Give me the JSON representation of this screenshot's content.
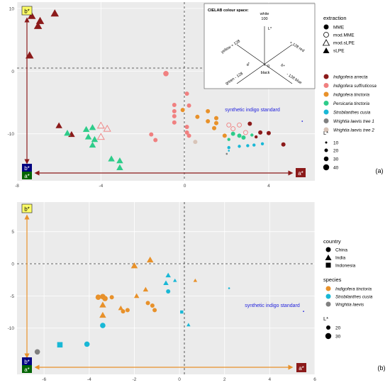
{
  "colors": {
    "panel_bg": "#ebebeb",
    "grid": "#ffffff",
    "arrow_red": "#8b1a1a",
    "arrow_orange": "#e8912a",
    "box_yellow": "#ffff66",
    "box_blue": "#000080",
    "box_green": "#006400",
    "box_red": "#8b1a1a",
    "synthetic_text": "#2222dd"
  },
  "chart_data": [
    {
      "id": "a",
      "type": "scatter",
      "panel_label": "(a)",
      "xlim": [
        -8,
        6.2
      ],
      "ylim": [
        -17.5,
        11
      ],
      "xticks": [
        -8,
        -4,
        0,
        4
      ],
      "yticks": [
        10,
        0,
        -10
      ],
      "box_labels": {
        "b_pos": "b*",
        "b_neg": "b*",
        "a_neg": "a*",
        "a_pos": "a*"
      },
      "synthetic_label": "synthetic indigo standard",
      "synthetic_point": {
        "x": 5.6,
        "y": -8.0
      },
      "inset": {
        "title": "CIELAB colour space:",
        "white": "white",
        "hundred": "100",
        "lstar": "L*",
        "black": "black",
        "zero": "0",
        "yellow": "yellow  + 128",
        "red": "+ 128  red",
        "green": "green  - 128",
        "blue": "- 128  blue",
        "a": "a*",
        "b": "b*"
      },
      "legend": {
        "extraction_title": "extraction",
        "extraction": [
          "MME",
          "mod.MME",
          "mod.sLPE",
          "sLPE"
        ],
        "species": [
          {
            "name": "Indigofera arrecta",
            "color": "#8b1a1a"
          },
          {
            "name": "Indigofera suffruticosa",
            "color": "#f08080"
          },
          {
            "name": "Indigofera tinctoria",
            "color": "#e8912a"
          },
          {
            "name": "Persicaria tinctoria",
            "color": "#2ecc8a"
          },
          {
            "name": "Strobilanthes cusia",
            "color": "#19b8d6"
          },
          {
            "name": "Wrightia laevis tree 1",
            "color": "#808080"
          },
          {
            "name": "Wrightia laevis tree 2",
            "color": "#d8c4b8"
          }
        ],
        "size_title": "L*",
        "sizes": [
          "10",
          "20",
          "30",
          "40"
        ]
      },
      "points": [
        {
          "x": -7.3,
          "y": 8.8,
          "shape": "tri",
          "species": 0,
          "size": 4
        },
        {
          "x": -6.9,
          "y": 8.0,
          "shape": "tri",
          "species": 0,
          "size": 4
        },
        {
          "x": -7.0,
          "y": 7.2,
          "shape": "tri",
          "species": 0,
          "size": 4
        },
        {
          "x": -6.2,
          "y": 9.2,
          "shape": "tri",
          "species": 0,
          "size": 4
        },
        {
          "x": -7.4,
          "y": 2.5,
          "shape": "tri",
          "species": 0,
          "size": 4
        },
        {
          "x": -6.0,
          "y": -8.7,
          "shape": "tri",
          "species": 0,
          "size": 3
        },
        {
          "x": -5.4,
          "y": -10.1,
          "shape": "tri",
          "species": 0,
          "size": 3
        },
        {
          "x": -5.6,
          "y": -9.9,
          "shape": "tri",
          "species": 3,
          "size": 3
        },
        {
          "x": -4.7,
          "y": -9.3,
          "shape": "tri",
          "species": 3,
          "size": 3
        },
        {
          "x": -4.4,
          "y": -9.0,
          "shape": "tri",
          "species": 3,
          "size": 3
        },
        {
          "x": -4.6,
          "y": -10.5,
          "shape": "tri",
          "species": 3,
          "size": 3
        },
        {
          "x": -4.3,
          "y": -10.9,
          "shape": "tri",
          "species": 3,
          "size": 3
        },
        {
          "x": -4.4,
          "y": -11.8,
          "shape": "tri",
          "species": 3,
          "size": 3
        },
        {
          "x": -4.0,
          "y": -8.7,
          "shape": "otri",
          "species": 1,
          "size": 3
        },
        {
          "x": -3.7,
          "y": -9.2,
          "shape": "otri",
          "species": 1,
          "size": 3
        },
        {
          "x": -4.0,
          "y": -10.5,
          "shape": "otri",
          "species": 1,
          "size": 3
        },
        {
          "x": -3.5,
          "y": -14.0,
          "shape": "tri",
          "species": 3,
          "size": 3
        },
        {
          "x": -3.1,
          "y": -14.3,
          "shape": "tri",
          "species": 3,
          "size": 3
        },
        {
          "x": -3.1,
          "y": -15.4,
          "shape": "tri",
          "species": 3,
          "size": 3
        },
        {
          "x": -0.9,
          "y": -0.4,
          "shape": "circ",
          "species": 1,
          "size": 3
        },
        {
          "x": -1.6,
          "y": -10.1,
          "shape": "circ",
          "species": 1,
          "size": 2
        },
        {
          "x": -1.4,
          "y": -11.0,
          "shape": "circ",
          "species": 1,
          "size": 2
        },
        {
          "x": -0.5,
          "y": -5.4,
          "shape": "circ",
          "species": 1,
          "size": 2
        },
        {
          "x": -0.5,
          "y": -6.4,
          "shape": "circ",
          "species": 1,
          "size": 2
        },
        {
          "x": -0.5,
          "y": -7.2,
          "shape": "circ",
          "species": 1,
          "size": 2
        },
        {
          "x": -0.5,
          "y": -8.2,
          "shape": "circ",
          "species": 1,
          "size": 2
        },
        {
          "x": 0.1,
          "y": -3.6,
          "shape": "circ",
          "species": 1,
          "size": 2
        },
        {
          "x": 0.2,
          "y": -5.5,
          "shape": "circ",
          "species": 1,
          "size": 2
        },
        {
          "x": 0.1,
          "y": -8.9,
          "shape": "circ",
          "species": 1,
          "size": 2
        },
        {
          "x": 0.1,
          "y": -9.8,
          "shape": "circ",
          "species": 1,
          "size": 2
        },
        {
          "x": 0.2,
          "y": -10.3,
          "shape": "circ",
          "species": 1,
          "size": 2
        },
        {
          "x": -0.1,
          "y": -6.2,
          "shape": "circ",
          "species": 2,
          "size": 2
        },
        {
          "x": 0.6,
          "y": -7.3,
          "shape": "circ",
          "species": 2,
          "size": 2
        },
        {
          "x": 1.1,
          "y": -6.4,
          "shape": "circ",
          "species": 2,
          "size": 2
        },
        {
          "x": 1.1,
          "y": -8.0,
          "shape": "circ",
          "species": 2,
          "size": 2
        },
        {
          "x": 1.5,
          "y": -7.5,
          "shape": "circ",
          "species": 2,
          "size": 2
        },
        {
          "x": 1.5,
          "y": -8.3,
          "shape": "circ",
          "species": 2,
          "size": 2
        },
        {
          "x": 1.9,
          "y": -10.3,
          "shape": "circ",
          "species": 2,
          "size": 2
        },
        {
          "x": 1.4,
          "y": -9.1,
          "shape": "circ",
          "species": 2,
          "size": 2
        },
        {
          "x": 0.5,
          "y": -11.3,
          "shape": "circ",
          "species": 6,
          "size": 2
        },
        {
          "x": 2.1,
          "y": -8.6,
          "shape": "ocirc",
          "species": 1,
          "size": 2
        },
        {
          "x": 2.3,
          "y": -9.2,
          "shape": "ocirc",
          "species": 1,
          "size": 2
        },
        {
          "x": 2.6,
          "y": -8.6,
          "shape": "ocirc",
          "species": 1,
          "size": 2
        },
        {
          "x": 2.9,
          "y": -9.8,
          "shape": "ocirc",
          "species": 1,
          "size": 2
        },
        {
          "x": 3.1,
          "y": -8.4,
          "shape": "circ",
          "species": 0,
          "size": 2
        },
        {
          "x": 3.6,
          "y": -9.8,
          "shape": "circ",
          "species": 0,
          "size": 2
        },
        {
          "x": 4.0,
          "y": -9.9,
          "shape": "circ",
          "species": 0,
          "size": 2
        },
        {
          "x": 4.7,
          "y": -11.7,
          "shape": "circ",
          "species": 0,
          "size": 2
        },
        {
          "x": 2.3,
          "y": -10.0,
          "shape": "circ",
          "species": 3,
          "size": 2
        },
        {
          "x": 2.6,
          "y": -10.3,
          "shape": "circ",
          "species": 3,
          "size": 2
        },
        {
          "x": 2.8,
          "y": -10.6,
          "shape": "circ",
          "species": 3,
          "size": 2
        },
        {
          "x": 3.2,
          "y": -10.2,
          "shape": "circ",
          "species": 3,
          "size": 1
        },
        {
          "x": 3.4,
          "y": -10.5,
          "shape": "circ",
          "species": 0,
          "size": 1
        },
        {
          "x": 2.1,
          "y": -10.9,
          "shape": "circ",
          "species": 3,
          "size": 1
        },
        {
          "x": 2.1,
          "y": -12.2,
          "shape": "circ",
          "species": 4,
          "size": 1
        },
        {
          "x": 2.6,
          "y": -12.0,
          "shape": "circ",
          "species": 4,
          "size": 1
        },
        {
          "x": 3.0,
          "y": -11.9,
          "shape": "circ",
          "species": 4,
          "size": 1
        },
        {
          "x": 3.3,
          "y": -11.8,
          "shape": "circ",
          "species": 4,
          "size": 1
        },
        {
          "x": 3.7,
          "y": -11.6,
          "shape": "circ",
          "species": 4,
          "size": 1
        },
        {
          "x": 2.1,
          "y": -12.7,
          "shape": "circ",
          "species": 4,
          "size": 0
        },
        {
          "x": 2.0,
          "y": -13.2,
          "shape": "circ",
          "species": 5,
          "size": 0
        }
      ]
    },
    {
      "id": "b",
      "type": "scatter",
      "panel_label": "(b)",
      "xlim": [
        -7.2,
        6
      ],
      "ylim": [
        -17.2,
        9.6
      ],
      "xticks": [
        -6,
        -4,
        -2,
        0,
        2,
        4,
        6
      ],
      "yticks": [
        5,
        0,
        -5,
        -10
      ],
      "box_labels": {
        "b_pos": "b*",
        "b_neg": "b*",
        "a_neg": "a*",
        "a_pos": "a*"
      },
      "synthetic_label": "synthetic indigo standard",
      "synthetic_point": {
        "x": 5.5,
        "y": -7.4
      },
      "legend": {
        "country_title": "country",
        "country": [
          "China",
          "India",
          "Indonesia"
        ],
        "species_title": "species",
        "species": [
          {
            "name": "Indigofera tinctoria",
            "color": "#e8912a"
          },
          {
            "name": "Strobilanthes cusia",
            "color": "#19b8d6"
          },
          {
            "name": "Wrightia laevis",
            "color": "#808080"
          }
        ],
        "size_title": "L*",
        "sizes": [
          "20",
          "30"
        ]
      },
      "points": [
        {
          "x": -6.3,
          "y": -13.7,
          "shape": "circ",
          "species": 2,
          "size": 3
        },
        {
          "x": -5.3,
          "y": -12.6,
          "shape": "sq",
          "species": 1,
          "size": 3
        },
        {
          "x": -4.1,
          "y": -12.5,
          "shape": "circ",
          "species": 1,
          "size": 3
        },
        {
          "x": -3.4,
          "y": -9.6,
          "shape": "circ",
          "species": 1,
          "size": 3
        },
        {
          "x": -3.4,
          "y": -8.0,
          "shape": "tri",
          "species": 0,
          "size": 3
        },
        {
          "x": -3.4,
          "y": -6.4,
          "shape": "tri",
          "species": 0,
          "size": 3
        },
        {
          "x": -3.6,
          "y": -5.2,
          "shape": "circ",
          "species": 0,
          "size": 3
        },
        {
          "x": -3.4,
          "y": -5.1,
          "shape": "circ",
          "species": 0,
          "size": 3
        },
        {
          "x": -3.3,
          "y": -5.4,
          "shape": "circ",
          "species": 0,
          "size": 3
        },
        {
          "x": -3.0,
          "y": -5.2,
          "shape": "circ",
          "species": 0,
          "size": 2
        },
        {
          "x": -2.6,
          "y": -6.9,
          "shape": "tri",
          "species": 0,
          "size": 2
        },
        {
          "x": -2.3,
          "y": -7.2,
          "shape": "circ",
          "species": 0,
          "size": 2
        },
        {
          "x": -2.5,
          "y": -7.4,
          "shape": "circ",
          "species": 0,
          "size": 2
        },
        {
          "x": -2.0,
          "y": -0.3,
          "shape": "tri",
          "species": 0,
          "size": 3
        },
        {
          "x": -1.5,
          "y": -4.0,
          "shape": "tri",
          "species": 0,
          "size": 2
        },
        {
          "x": -1.3,
          "y": 0.6,
          "shape": "tri",
          "species": 0,
          "size": 3
        },
        {
          "x": -1.9,
          "y": -5.0,
          "shape": "tri",
          "species": 0,
          "size": 2
        },
        {
          "x": -1.4,
          "y": -6.1,
          "shape": "circ",
          "species": 0,
          "size": 2
        },
        {
          "x": -1.2,
          "y": -6.5,
          "shape": "circ",
          "species": 0,
          "size": 2
        },
        {
          "x": -1.1,
          "y": -7.2,
          "shape": "circ",
          "species": 0,
          "size": 2
        },
        {
          "x": -0.5,
          "y": -1.8,
          "shape": "tri",
          "species": 1,
          "size": 2
        },
        {
          "x": -0.6,
          "y": -3.0,
          "shape": "tri",
          "species": 1,
          "size": 2
        },
        {
          "x": -0.5,
          "y": -4.3,
          "shape": "circ",
          "species": 1,
          "size": 2
        },
        {
          "x": -0.2,
          "y": -2.6,
          "shape": "tri",
          "species": 1,
          "size": 1
        },
        {
          "x": 0.1,
          "y": -7.5,
          "shape": "sq",
          "species": 1,
          "size": 1
        },
        {
          "x": 0.4,
          "y": -9.5,
          "shape": "tri",
          "species": 1,
          "size": 1
        },
        {
          "x": 0.7,
          "y": -2.6,
          "shape": "tri",
          "species": 0,
          "size": 1
        },
        {
          "x": 2.2,
          "y": -3.8,
          "shape": "circ",
          "species": 1,
          "size": 0
        }
      ]
    }
  ]
}
